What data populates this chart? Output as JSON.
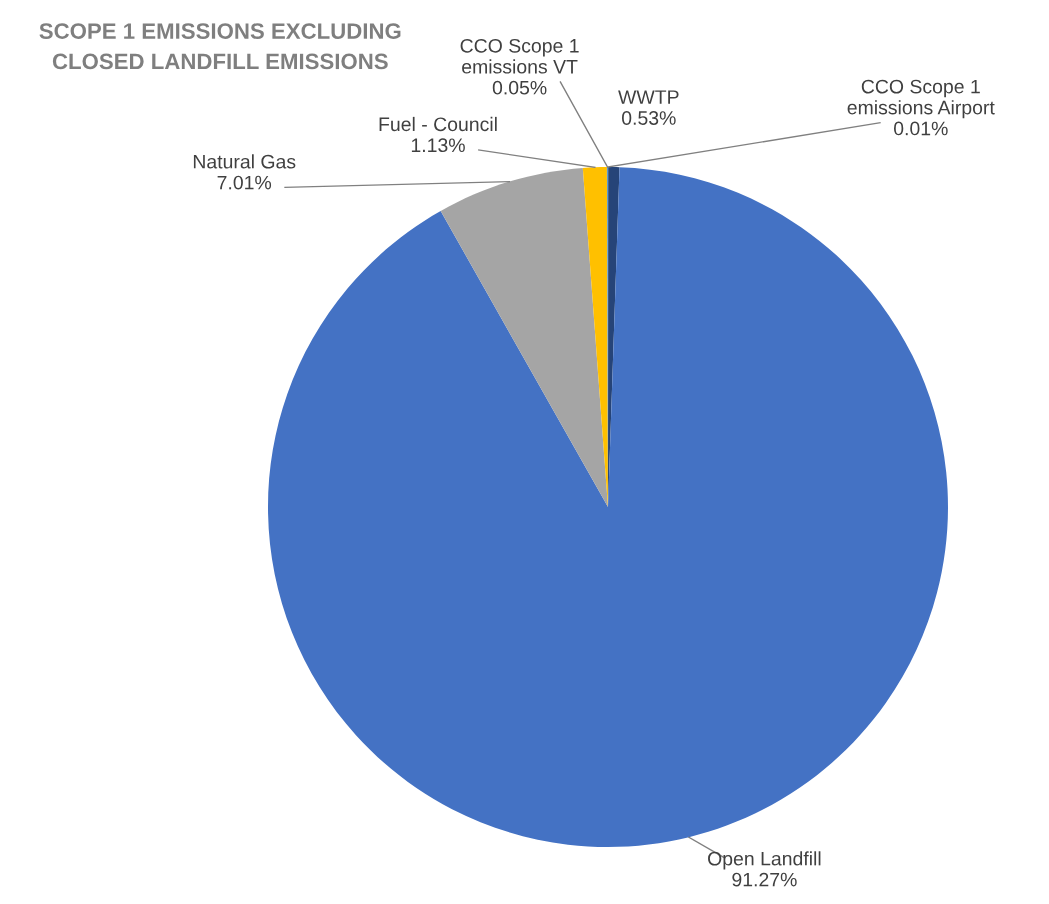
{
  "chart_data": {
    "type": "pie",
    "title": "SCOPE 1 EMISSIONS EXCLUDING\nCLOSED LANDFILL EMISSIONS",
    "categories": [
      "CCO Scope 1\nemissions Airport",
      "WWTP",
      "Open Landfill",
      "Natural Gas",
      "Fuel - Council",
      "CCO Scope 1\nemissions VT"
    ],
    "values": [
      0.01,
      0.53,
      91.27,
      7.01,
      1.13,
      0.05
    ],
    "value_labels": [
      "0.01%",
      "0.53%",
      "91.27%",
      "7.01%",
      "1.13%",
      "0.05%"
    ],
    "colors": [
      "#70ad47",
      "#264478",
      "#4472c4",
      "#a5a5a5",
      "#ffc000",
      "#5b9bd5"
    ]
  }
}
